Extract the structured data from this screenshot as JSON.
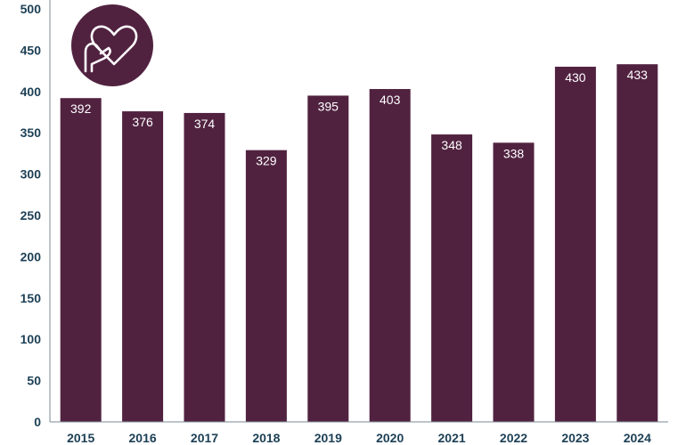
{
  "colors": {
    "bar": "#512240",
    "axis_text": "#1c3f55",
    "axis_line": "#7a8a96",
    "badge": "#512240",
    "badge_icon": "#ffffff"
  },
  "icon": {
    "name": "hand-holding-heart-icon"
  },
  "chart_data": {
    "type": "bar",
    "title": "",
    "xlabel": "",
    "ylabel": "",
    "categories": [
      "2015",
      "2016",
      "2017",
      "2018",
      "2019",
      "2020",
      "2021",
      "2022",
      "2023",
      "2024"
    ],
    "values": [
      392,
      376,
      374,
      329,
      395,
      403,
      348,
      338,
      430,
      433
    ],
    "data_labels": [
      "392",
      "376",
      "374",
      "329",
      "395",
      "403",
      "348",
      "338",
      "430",
      "433"
    ],
    "ylim": [
      0,
      500
    ],
    "yticks": [
      "0",
      "50",
      "100",
      "150",
      "200",
      "250",
      "300",
      "350",
      "400",
      "450",
      "500"
    ],
    "grid": false,
    "legend": "none"
  }
}
